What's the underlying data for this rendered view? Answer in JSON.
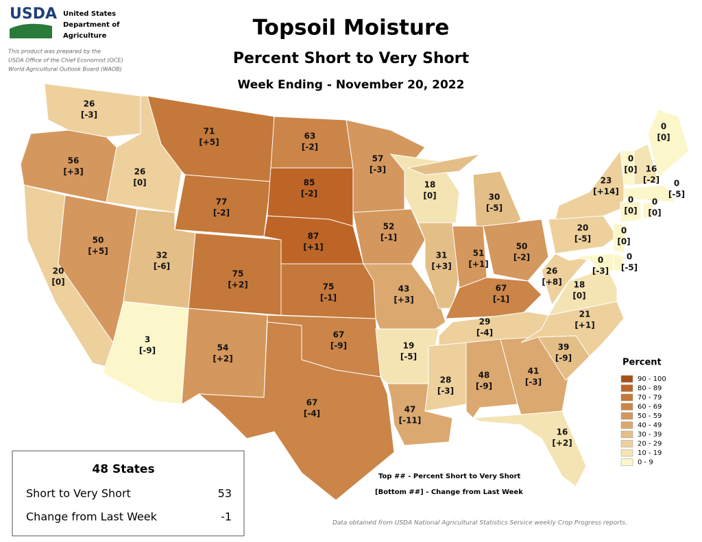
{
  "header": {
    "logo": "USDA",
    "agency": [
      "United States",
      "Department of",
      "Agriculture"
    ],
    "disclaimer": [
      "This product was prepared by the",
      "USDA Office of the Chief Economist (OCE)",
      "World Agricultural Outlook Board (WAOB)"
    ]
  },
  "title": "Topsoil Moisture",
  "subtitle": "Percent Short to Very Short",
  "date": "Week Ending - November 20, 2022",
  "states": [
    {
      "value": 26,
      "change": -3,
      "change_label": "[-3]"
    },
    {
      "value": 56,
      "change": 3,
      "change_label": "[+3]"
    },
    {
      "value": 20,
      "change": 0,
      "change_label": "[0]"
    },
    {
      "value": 50,
      "change": 5,
      "change_label": "[+5]"
    },
    {
      "value": 26,
      "change": 0,
      "change_label": "[0]"
    },
    {
      "value": 71,
      "change": 5,
      "change_label": "[+5]"
    },
    {
      "value": 77,
      "change": -2,
      "change_label": "[-2]"
    },
    {
      "value": 32,
      "change": -6,
      "change_label": "[-6]"
    },
    {
      "value": 3,
      "change": -9,
      "change_label": "[-9]"
    },
    {
      "value": 75,
      "change": 2,
      "change_label": "[+2]"
    },
    {
      "value": 54,
      "change": 2,
      "change_label": "[+2]"
    },
    {
      "value": 63,
      "change": -2,
      "change_label": "[-2]"
    },
    {
      "value": 85,
      "change": -2,
      "change_label": "[-2]"
    },
    {
      "value": 87,
      "change": 1,
      "change_label": "[+1]"
    },
    {
      "value": 75,
      "change": -1,
      "change_label": "[-1]"
    },
    {
      "value": 67,
      "change": -9,
      "change_label": "[-9]"
    },
    {
      "value": 67,
      "change": -4,
      "change_label": "[-4]"
    },
    {
      "value": 57,
      "change": -3,
      "change_label": "[-3]"
    },
    {
      "value": 52,
      "change": -1,
      "change_label": "[-1]"
    },
    {
      "value": 43,
      "change": 3,
      "change_label": "[+3]"
    },
    {
      "value": 19,
      "change": -5,
      "change_label": "[-5]"
    },
    {
      "value": 47,
      "change": -11,
      "change_label": "[-11]"
    },
    {
      "value": 18,
      "change": 0,
      "change_label": "[0]"
    },
    {
      "value": 31,
      "change": 3,
      "change_label": "[+3]"
    },
    {
      "value": 30,
      "change": -5,
      "change_label": "[-5]"
    },
    {
      "value": 51,
      "change": 1,
      "change_label": "[+1]"
    },
    {
      "value": 50,
      "change": -2,
      "change_label": "[-2]"
    },
    {
      "value": 67,
      "change": -1,
      "change_label": "[-1]"
    },
    {
      "value": 29,
      "change": -4,
      "change_label": "[-4]"
    },
    {
      "value": 28,
      "change": -3,
      "change_label": "[-3]"
    },
    {
      "value": 48,
      "change": -9,
      "change_label": "[-9]"
    },
    {
      "value": 41,
      "change": -3,
      "change_label": "[-3]"
    },
    {
      "value": 16,
      "change": 2,
      "change_label": "[+2]"
    },
    {
      "value": 39,
      "change": -9,
      "change_label": "[-9]"
    },
    {
      "value": 21,
      "change": 1,
      "change_label": "[+1]"
    },
    {
      "value": 18,
      "change": 0,
      "change_label": "[0]"
    },
    {
      "value": 26,
      "change": 8,
      "change_label": "[+8]"
    },
    {
      "value": 20,
      "change": -5,
      "change_label": "[-5]"
    },
    {
      "value": 23,
      "change": 14,
      "change_label": "[+14]"
    },
    {
      "value": 0,
      "change": 0,
      "change_label": "[0]"
    },
    {
      "value": 16,
      "change": -2,
      "change_label": "[-2]"
    },
    {
      "value": 0,
      "change": 0,
      "change_label": "[0]"
    },
    {
      "value": 0,
      "change": -5,
      "change_label": "[-5]"
    },
    {
      "value": 0,
      "change": 0,
      "change_label": "[0]"
    },
    {
      "value": 0,
      "change": 0,
      "change_label": "[0]"
    },
    {
      "value": 0,
      "change": 0,
      "change_label": "[0]"
    },
    {
      "value": 0,
      "change": -5,
      "change_label": "[-5]"
    },
    {
      "value": 0,
      "change": -3,
      "change_label": "[-3]"
    }
  ],
  "legend": {
    "title": "Percent",
    "bins": [
      {
        "label": "90 - 100",
        "from": 90,
        "to": 100,
        "color": "#a9501a"
      },
      {
        "label": "80 - 89",
        "from": 80,
        "to": 89,
        "color": "#bd6527"
      },
      {
        "label": "70 - 79",
        "from": 70,
        "to": 79,
        "color": "#c4783a"
      },
      {
        "label": "60 - 69",
        "from": 60,
        "to": 69,
        "color": "#cb8548"
      },
      {
        "label": "50 - 59",
        "from": 50,
        "to": 59,
        "color": "#d4975d"
      },
      {
        "label": "40 - 49",
        "from": 40,
        "to": 49,
        "color": "#dba86f"
      },
      {
        "label": "30 - 39",
        "from": 30,
        "to": 39,
        "color": "#e4be87"
      },
      {
        "label": "20 - 29",
        "from": 20,
        "to": 29,
        "color": "#edd09c"
      },
      {
        "label": "10 - 19",
        "from": 10,
        "to": 19,
        "color": "#f4e4b3"
      },
      {
        "label": "0 - 9",
        "from": 0,
        "to": 9,
        "color": "#fcf7cb"
      }
    ]
  },
  "key": [
    "Top ## - Percent Short to Very Short",
    "[Bottom ##] - Change from Last Week"
  ],
  "summary": {
    "title": "48 States",
    "rows": [
      [
        "Short to Very Short",
        53
      ],
      [
        "Change from Last Week",
        -1
      ]
    ]
  },
  "source": "Data obtained from USDA National Agricultural Statistics Service weekly Crop Progress reports."
}
